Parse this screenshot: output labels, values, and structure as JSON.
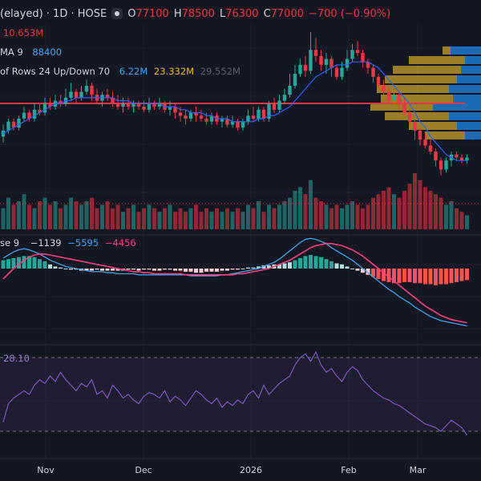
{
  "header": {
    "symbol": "(elayed) · 1D · HOSE",
    "open_label": "O",
    "open": "77100",
    "high_label": "H",
    "high": "78500",
    "low_label": "L",
    "low": "76300",
    "close_label": "C",
    "close": "77000",
    "change": "−700 (−0.90%)"
  },
  "indicators": {
    "volume_value": "10.653M",
    "ma_label": "MA 9",
    "ma_value": "88400",
    "vp_label": "of Rows 24 Up/Down 70",
    "vp_up": "6.22M",
    "vp_down": "23.332M",
    "vp_total": "29.552M",
    "macd_label": "se 9",
    "macd_hist": "−1139",
    "macd_line": "−5595",
    "macd_signal": "−4456",
    "rsi_value": "28.10"
  },
  "x_axis": {
    "ticks": [
      "Nov",
      "Dec",
      "2026",
      "Feb",
      "Mar"
    ]
  },
  "colors": {
    "background": "#131722",
    "up": "#26a69a",
    "down": "#f23645",
    "ma": "#2962ff",
    "macd": "#42a5f5",
    "signal": "#ff4081",
    "rsi": "#7e57c2",
    "vp_up": "#c9a227",
    "vp_down": "#1e88e5"
  },
  "chart_data": {
    "type": "candlestick",
    "ohlc": [
      [
        0,
        41,
        43,
        45,
        39
      ],
      [
        1,
        43,
        46,
        47,
        42
      ],
      [
        2,
        46,
        44,
        47,
        43
      ],
      [
        3,
        44,
        47,
        48,
        43
      ],
      [
        4,
        47,
        49,
        51,
        46
      ],
      [
        5,
        49,
        47,
        50,
        46
      ],
      [
        6,
        47,
        50,
        52,
        46
      ],
      [
        7,
        50,
        49,
        52,
        48
      ],
      [
        8,
        49,
        52,
        54,
        48
      ],
      [
        9,
        52,
        51,
        54,
        50
      ],
      [
        10,
        51,
        53,
        55,
        50
      ],
      [
        11,
        53,
        52,
        55,
        51
      ],
      [
        12,
        52,
        54,
        57,
        51
      ],
      [
        13,
        54,
        56,
        59,
        53
      ],
      [
        14,
        56,
        54,
        57,
        52
      ],
      [
        15,
        54,
        56,
        58,
        53
      ],
      [
        16,
        56,
        58,
        60,
        55
      ],
      [
        17,
        58,
        55,
        59,
        53
      ],
      [
        18,
        55,
        53,
        57,
        52
      ],
      [
        19,
        53,
        55,
        56,
        51
      ],
      [
        20,
        55,
        54,
        57,
        53
      ],
      [
        21,
        54,
        52,
        56,
        51
      ],
      [
        22,
        52,
        51,
        55,
        50
      ],
      [
        23,
        51,
        52,
        54,
        49
      ],
      [
        24,
        52,
        51,
        54,
        50
      ],
      [
        25,
        51,
        52,
        53,
        49
      ],
      [
        26,
        52,
        51,
        53,
        50
      ],
      [
        27,
        51,
        50,
        53,
        49
      ],
      [
        28,
        50,
        52,
        54,
        49
      ],
      [
        29,
        52,
        51,
        53,
        50
      ],
      [
        30,
        51,
        52,
        54,
        50
      ],
      [
        31,
        52,
        50,
        53,
        49
      ],
      [
        32,
        50,
        51,
        53,
        48
      ],
      [
        33,
        51,
        49,
        52,
        47
      ],
      [
        34,
        49,
        48,
        51,
        46
      ],
      [
        35,
        48,
        47,
        50,
        45
      ],
      [
        36,
        47,
        49,
        50,
        46
      ],
      [
        37,
        49,
        48,
        51,
        46
      ],
      [
        38,
        48,
        47,
        50,
        46
      ],
      [
        39,
        47,
        46,
        49,
        45
      ],
      [
        40,
        46,
        48,
        49,
        45
      ],
      [
        41,
        48,
        46,
        49,
        45
      ],
      [
        42,
        46,
        47,
        48,
        44
      ],
      [
        43,
        47,
        45,
        48,
        44
      ],
      [
        44,
        45,
        46,
        48,
        44
      ],
      [
        45,
        46,
        44,
        47,
        43
      ],
      [
        46,
        44,
        46,
        47,
        43
      ],
      [
        47,
        46,
        48,
        50,
        45
      ],
      [
        48,
        48,
        47,
        51,
        46
      ],
      [
        49,
        47,
        50,
        51,
        46
      ],
      [
        50,
        50,
        47,
        51,
        46
      ],
      [
        51,
        47,
        52,
        53,
        46
      ],
      [
        52,
        52,
        50,
        54,
        49
      ],
      [
        53,
        50,
        53,
        55,
        49
      ],
      [
        54,
        53,
        55,
        57,
        52
      ],
      [
        55,
        55,
        58,
        62,
        54
      ],
      [
        56,
        58,
        62,
        65,
        57
      ],
      [
        57,
        62,
        65,
        67,
        61
      ],
      [
        58,
        65,
        63,
        68,
        61
      ],
      [
        59,
        63,
        70,
        76,
        62
      ],
      [
        60,
        70,
        68,
        74,
        66
      ],
      [
        61,
        68,
        65,
        70,
        63
      ],
      [
        62,
        65,
        67,
        69,
        62
      ],
      [
        63,
        67,
        64,
        68,
        61
      ],
      [
        64,
        64,
        61,
        65,
        60
      ],
      [
        65,
        61,
        64,
        66,
        60
      ],
      [
        66,
        64,
        67,
        70,
        63
      ],
      [
        67,
        67,
        70,
        72,
        66
      ],
      [
        68,
        70,
        69,
        73,
        68
      ],
      [
        69,
        69,
        66,
        70,
        64
      ],
      [
        70,
        66,
        64,
        67,
        62
      ],
      [
        71,
        64,
        61,
        65,
        59
      ],
      [
        72,
        61,
        58,
        62,
        57
      ],
      [
        73,
        58,
        56,
        60,
        55
      ],
      [
        74,
        56,
        53,
        58,
        52
      ],
      [
        75,
        53,
        55,
        56,
        51
      ],
      [
        76,
        55,
        52,
        56,
        50
      ],
      [
        77,
        52,
        49,
        54,
        48
      ],
      [
        78,
        49,
        46,
        50,
        45
      ],
      [
        79,
        46,
        43,
        47,
        40
      ],
      [
        80,
        43,
        40,
        44,
        38
      ],
      [
        81,
        40,
        38,
        42,
        37
      ],
      [
        82,
        38,
        36,
        40,
        35
      ],
      [
        83,
        36,
        33,
        37,
        31
      ],
      [
        84,
        33,
        30,
        34,
        28
      ],
      [
        85,
        30,
        33,
        34,
        29
      ],
      [
        86,
        33,
        35,
        36,
        31
      ],
      [
        87,
        35,
        34,
        36,
        33
      ],
      [
        88,
        34,
        33,
        35,
        32
      ],
      [
        89,
        33,
        34,
        35,
        32
      ]
    ],
    "ma9": [
      42,
      43,
      44,
      45,
      46,
      47,
      48,
      49,
      50,
      51,
      52,
      52,
      53,
      53,
      54,
      54,
      54,
      54,
      54,
      54,
      54,
      54,
      53,
      53,
      53,
      52,
      52,
      52,
      52,
      52,
      52,
      51,
      51,
      51,
      50,
      50,
      49,
      49,
      49,
      48,
      48,
      47,
      47,
      47,
      46,
      46,
      46,
      46,
      46,
      47,
      47,
      48,
      48,
      49,
      50,
      51,
      53,
      55,
      57,
      59,
      61,
      62,
      63,
      64,
      65,
      65,
      65,
      66,
      66,
      66,
      66,
      65,
      64,
      62,
      60,
      58,
      56,
      54,
      52,
      49,
      46,
      44,
      41,
      39,
      37,
      35,
      34,
      33,
      33,
      33
    ],
    "volume": [
      6,
      9,
      7,
      8,
      10,
      7,
      6,
      8,
      9,
      7,
      8,
      6,
      7,
      9,
      8,
      7,
      8,
      9,
      6,
      7,
      8,
      6,
      7,
      5,
      6,
      7,
      5,
      6,
      7,
      6,
      5,
      6,
      7,
      5,
      6,
      5,
      6,
      7,
      5,
      6,
      5,
      6,
      5,
      6,
      5,
      6,
      5,
      7,
      6,
      8,
      5,
      7,
      6,
      7,
      8,
      9,
      11,
      12,
      10,
      14,
      9,
      8,
      7,
      6,
      7,
      6,
      7,
      8,
      7,
      6,
      7,
      9,
      10,
      11,
      12,
      10,
      9,
      11,
      13,
      16,
      14,
      12,
      11,
      10,
      9,
      7,
      8,
      6,
      5,
      4
    ],
    "macd_hist": [
      8,
      9,
      10,
      11,
      12,
      12,
      11,
      9,
      7,
      4,
      2,
      1,
      0,
      -1,
      -1,
      -2,
      -2,
      -2,
      -1,
      -2,
      -2,
      -2,
      -2,
      -2,
      -1,
      -1,
      -2,
      -1,
      -1,
      -2,
      -2,
      -1,
      -1,
      -2,
      -2,
      -3,
      -3,
      -4,
      -4,
      -3,
      -3,
      -3,
      -2,
      -2,
      -1,
      -1,
      0,
      1,
      1,
      2,
      3,
      3,
      4,
      4,
      5,
      6,
      8,
      10,
      12,
      13,
      12,
      11,
      9,
      7,
      5,
      4,
      2,
      0,
      -2,
      -4,
      -6,
      -8,
      -10,
      -12,
      -13,
      -14,
      -14,
      -13,
      -13,
      -14,
      -14,
      -15,
      -15,
      -16,
      -15,
      -15,
      -14,
      -13,
      -12,
      -11
    ],
    "macd_line": [
      10,
      13,
      16,
      18,
      19,
      18,
      16,
      14,
      11,
      8,
      6,
      4,
      2,
      1,
      0,
      -1,
      -2,
      -3,
      -3,
      -3,
      -4,
      -4,
      -5,
      -5,
      -5,
      -5,
      -6,
      -6,
      -6,
      -6,
      -6,
      -6,
      -6,
      -6,
      -6,
      -6,
      -7,
      -7,
      -7,
      -7,
      -7,
      -7,
      -6,
      -6,
      -5,
      -4,
      -3,
      -2,
      -1,
      0,
      2,
      4,
      6,
      9,
      13,
      17,
      21,
      25,
      28,
      29,
      28,
      26,
      24,
      20,
      17,
      14,
      11,
      8,
      4,
      0,
      -4,
      -8,
      -12,
      -16,
      -20,
      -23,
      -27,
      -30,
      -33,
      -37,
      -40,
      -43,
      -46,
      -48,
      -50,
      -51,
      -52,
      -53,
      -54,
      -55
    ],
    "macd_signal": [
      -10,
      -5,
      0,
      4,
      8,
      11,
      13,
      14,
      14,
      13,
      12,
      11,
      10,
      9,
      8,
      7,
      6,
      5,
      4,
      3,
      2,
      1,
      0,
      -1,
      -2,
      -3,
      -3,
      -4,
      -4,
      -5,
      -5,
      -5,
      -5,
      -5,
      -5,
      -6,
      -6,
      -6,
      -6,
      -6,
      -6,
      -6,
      -6,
      -6,
      -6,
      -5,
      -5,
      -4,
      -3,
      -2,
      -1,
      0,
      2,
      4,
      6,
      8,
      11,
      14,
      17,
      20,
      22,
      23,
      24,
      24,
      23,
      22,
      20,
      18,
      15,
      12,
      8,
      4,
      0,
      -4,
      -8,
      -12,
      -16,
      -20,
      -24,
      -28,
      -32,
      -36,
      -39,
      -42,
      -45,
      -47,
      -49,
      -50,
      -51,
      -52
    ],
    "rsi": [
      35,
      45,
      48,
      50,
      52,
      50,
      55,
      58,
      56,
      60,
      57,
      62,
      58,
      55,
      52,
      56,
      54,
      58,
      50,
      52,
      48,
      55,
      52,
      48,
      50,
      47,
      45,
      49,
      51,
      50,
      48,
      52,
      46,
      49,
      47,
      44,
      48,
      52,
      50,
      47,
      45,
      48,
      43,
      46,
      44,
      47,
      45,
      50,
      52,
      48,
      55,
      50,
      53,
      56,
      58,
      60,
      66,
      70,
      72,
      68,
      73,
      66,
      62,
      64,
      60,
      57,
      62,
      65,
      63,
      58,
      55,
      52,
      50,
      48,
      47,
      45,
      44,
      42,
      40,
      38,
      36,
      34,
      33,
      32,
      30,
      33,
      36,
      34,
      32,
      28
    ]
  }
}
